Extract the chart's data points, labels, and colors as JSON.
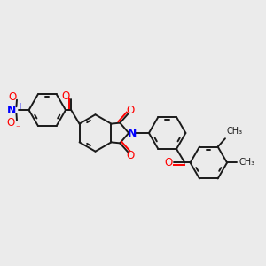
{
  "bg_color": "#ebebeb",
  "bond_color": "#1a1a1a",
  "oxygen_color": "#ff0000",
  "nitrogen_color": "#0000ff",
  "line_width": 1.4,
  "dbo": 0.055,
  "figsize": [
    3.0,
    3.0
  ],
  "dpi": 100,
  "xlim": [
    -2.3,
    3.2
  ],
  "ylim": [
    -1.6,
    1.6
  ]
}
